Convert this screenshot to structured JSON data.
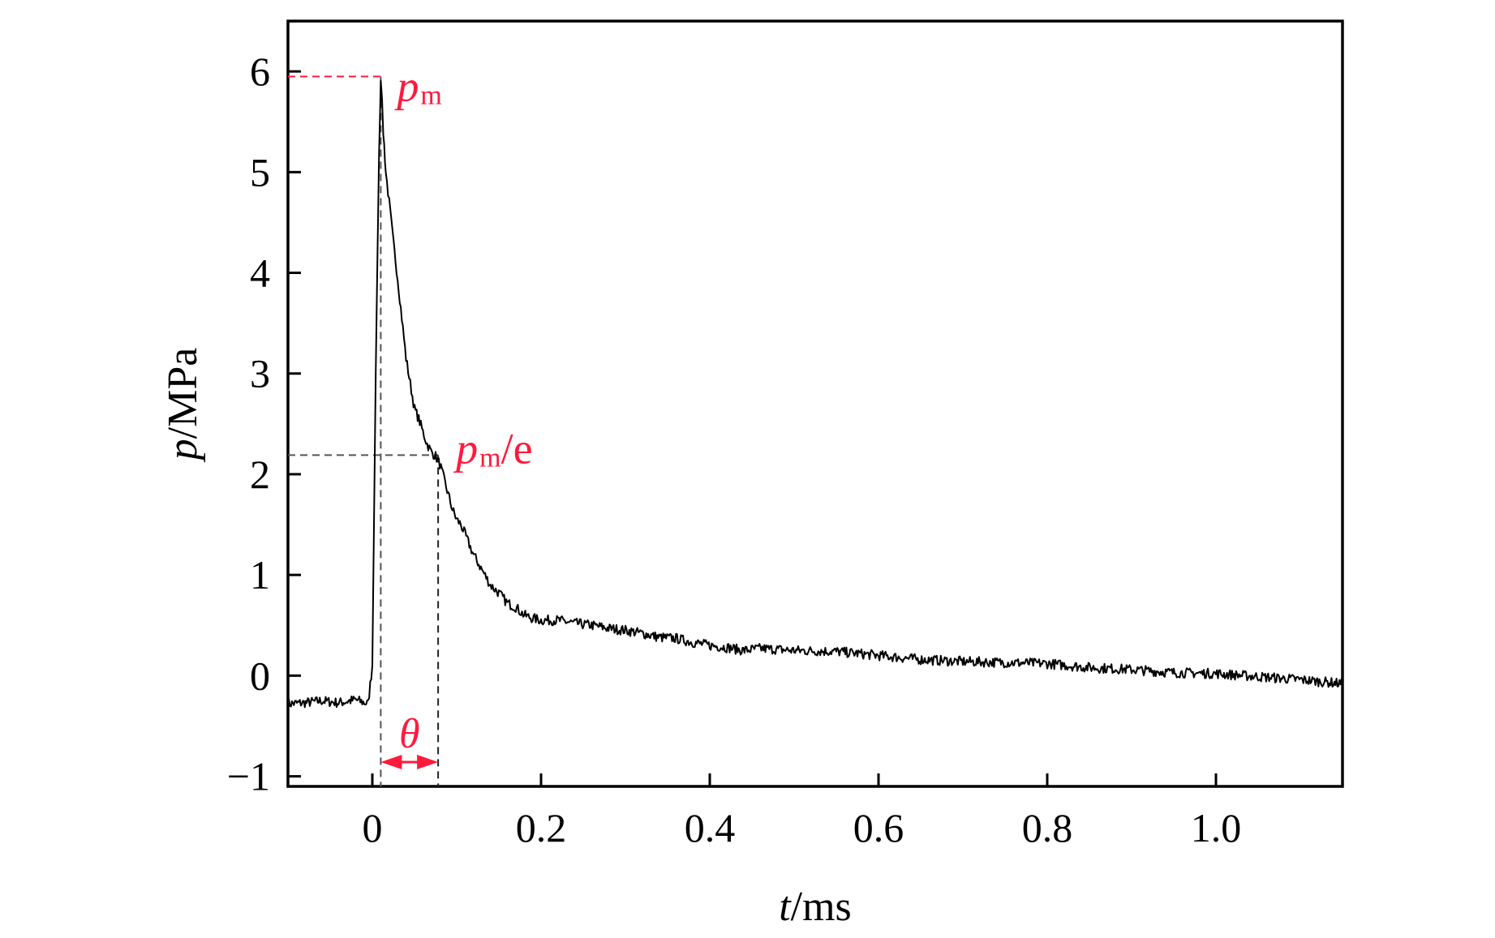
{
  "chart_data": {
    "type": "line",
    "xlabel": {
      "var": "t",
      "unit": "/ms"
    },
    "ylabel": {
      "var": "p",
      "unit": "/MPa"
    },
    "xlim": [
      -0.1,
      1.15
    ],
    "ylim": [
      -1.1,
      6.5
    ],
    "x_ticks": [
      0,
      0.2,
      0.4,
      0.6,
      0.8,
      1.0
    ],
    "x_tick_labels": [
      "0",
      "0.2",
      "0.4",
      "0.6",
      "0.8",
      "1.0"
    ],
    "y_ticks": [
      -1,
      0,
      1,
      2,
      3,
      4,
      5,
      6
    ],
    "y_tick_labels": [
      "−1",
      "0",
      "1",
      "2",
      "3",
      "4",
      "5",
      "6"
    ],
    "grid": false,
    "series": [
      {
        "color": "#000000",
        "x": [
          -0.1,
          -0.08,
          -0.06,
          -0.04,
          -0.02,
          -0.005,
          0.0,
          0.004,
          0.008,
          0.01,
          0.013,
          0.016,
          0.02,
          0.025,
          0.03,
          0.035,
          0.04,
          0.045,
          0.05,
          0.055,
          0.06,
          0.065,
          0.07,
          0.075,
          0.08,
          0.085,
          0.09,
          0.095,
          0.1,
          0.105,
          0.11,
          0.115,
          0.12,
          0.13,
          0.14,
          0.15,
          0.16,
          0.17,
          0.18,
          0.19,
          0.2,
          0.22,
          0.24,
          0.26,
          0.28,
          0.3,
          0.32,
          0.34,
          0.36,
          0.38,
          0.4,
          0.42,
          0.44,
          0.46,
          0.48,
          0.5,
          0.55,
          0.6,
          0.65,
          0.7,
          0.75,
          0.8,
          0.85,
          0.9,
          0.95,
          1.0,
          1.05,
          1.1,
          1.15
        ],
        "y": [
          -0.28,
          -0.27,
          -0.25,
          -0.27,
          -0.24,
          -0.28,
          0.1,
          3.0,
          5.2,
          5.95,
          5.4,
          5.0,
          4.7,
          4.3,
          3.95,
          3.55,
          3.15,
          2.9,
          2.65,
          2.55,
          2.42,
          2.3,
          2.22,
          2.18,
          2.1,
          1.95,
          1.8,
          1.65,
          1.55,
          1.5,
          1.4,
          1.3,
          1.2,
          1.05,
          0.9,
          0.82,
          0.72,
          0.68,
          0.6,
          0.57,
          0.55,
          0.55,
          0.52,
          0.5,
          0.47,
          0.45,
          0.42,
          0.38,
          0.37,
          0.33,
          0.3,
          0.28,
          0.25,
          0.27,
          0.26,
          0.25,
          0.24,
          0.2,
          0.16,
          0.14,
          0.13,
          0.12,
          0.08,
          0.06,
          0.03,
          0.02,
          -0.01,
          -0.04,
          -0.08
        ]
      }
    ],
    "annotations": {
      "peak": {
        "main": "p",
        "sub": "m",
        "t": 0.01,
        "p": 5.95
      },
      "decay": {
        "main": "p",
        "sub": "m",
        "suffix": "/e",
        "t": 0.078,
        "p": 2.19
      },
      "duration": {
        "label": "θ",
        "t_start": 0.01,
        "t_end": 0.078
      },
      "color": "#ff1a3c"
    }
  }
}
